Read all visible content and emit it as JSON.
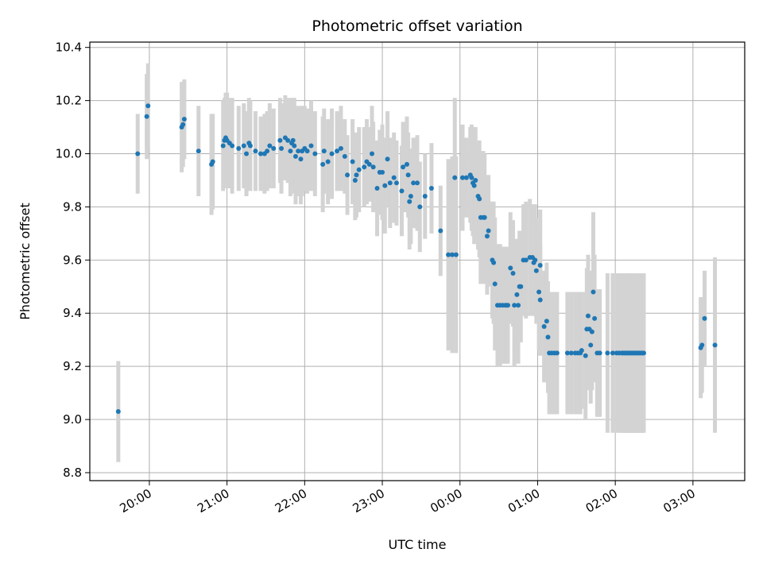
{
  "chart_data": {
    "type": "scatter",
    "title": "Photometric offset variation",
    "xlabel": "UTC time",
    "ylabel": "Photometric offset",
    "x_ticks": [
      "20:00",
      "21:00",
      "22:00",
      "23:00",
      "00:00",
      "01:00",
      "02:00",
      "03:00"
    ],
    "y_ticks": [
      "8.8",
      "9.0",
      "9.2",
      "9.4",
      "9.6",
      "9.8",
      "10.0",
      "10.2",
      "10.4"
    ],
    "xlim": [
      "19:14",
      "03:40"
    ],
    "ylim": [
      8.77,
      10.42
    ],
    "grid": true,
    "colors": {
      "points": "#1f77b4",
      "errorbars": "#d3d3d3",
      "grid": "#b0b0b0"
    },
    "series": [
      {
        "points": [
          [
            "19:36",
            9.03,
            0.19
          ],
          [
            "19:51",
            10.0,
            0.15
          ],
          [
            "19:58",
            10.14,
            0.16
          ],
          [
            "19:59",
            10.18,
            0.16
          ],
          [
            "20:25",
            10.1,
            0.17
          ],
          [
            "20:26",
            10.11,
            0.16
          ],
          [
            "20:27",
            10.13,
            0.15
          ],
          [
            "20:38",
            10.01,
            0.17
          ],
          [
            "20:48",
            9.96,
            0.19
          ],
          [
            "20:49",
            9.97,
            0.18
          ],
          [
            "20:57",
            10.03,
            0.17
          ],
          [
            "20:58",
            10.05,
            0.16
          ],
          [
            "20:59",
            10.06,
            0.17
          ],
          [
            "21:00",
            10.05,
            0.18
          ],
          [
            "21:02",
            10.04,
            0.17
          ],
          [
            "21:04",
            10.03,
            0.18
          ],
          [
            "21:09",
            10.02,
            0.16
          ],
          [
            "21:13",
            10.03,
            0.16
          ],
          [
            "21:15",
            10.0,
            0.16
          ],
          [
            "21:17",
            10.04,
            0.17
          ],
          [
            "21:18",
            10.03,
            0.17
          ],
          [
            "21:22",
            10.01,
            0.15
          ],
          [
            "21:26",
            10.0,
            0.14
          ],
          [
            "21:29",
            10.0,
            0.15
          ],
          [
            "21:31",
            10.01,
            0.15
          ],
          [
            "21:33",
            10.03,
            0.16
          ],
          [
            "21:36",
            10.02,
            0.15
          ],
          [
            "21:41",
            10.05,
            0.16
          ],
          [
            "21:42",
            10.02,
            0.17
          ],
          [
            "21:45",
            10.06,
            0.16
          ],
          [
            "21:47",
            10.05,
            0.16
          ],
          [
            "21:49",
            10.01,
            0.17
          ],
          [
            "21:50",
            10.04,
            0.17
          ],
          [
            "21:51",
            10.05,
            0.16
          ],
          [
            "21:52",
            10.03,
            0.18
          ],
          [
            "21:53",
            9.99,
            0.18
          ],
          [
            "21:55",
            10.01,
            0.17
          ],
          [
            "21:57",
            9.98,
            0.17
          ],
          [
            "21:58",
            10.01,
            0.17
          ],
          [
            "22:00",
            10.02,
            0.16
          ],
          [
            "22:02",
            10.01,
            0.16
          ],
          [
            "22:05",
            10.03,
            0.17
          ],
          [
            "22:08",
            10.0,
            0.16
          ],
          [
            "22:14",
            9.96,
            0.18
          ],
          [
            "22:15",
            10.01,
            0.16
          ],
          [
            "22:18",
            9.97,
            0.16
          ],
          [
            "22:21",
            10.0,
            0.17
          ],
          [
            "22:25",
            10.01,
            0.15
          ],
          [
            "22:28",
            10.02,
            0.16
          ],
          [
            "22:31",
            9.99,
            0.14
          ],
          [
            "22:33",
            9.92,
            0.15
          ],
          [
            "22:37",
            9.97,
            0.16
          ],
          [
            "22:39",
            9.9,
            0.15
          ],
          [
            "22:40",
            9.92,
            0.16
          ],
          [
            "22:42",
            9.94,
            0.16
          ],
          [
            "22:46",
            9.95,
            0.15
          ],
          [
            "22:48",
            9.97,
            0.16
          ],
          [
            "22:50",
            9.96,
            0.14
          ],
          [
            "22:52",
            10.0,
            0.18
          ],
          [
            "22:53",
            9.95,
            0.17
          ],
          [
            "22:56",
            9.87,
            0.18
          ],
          [
            "22:58",
            9.93,
            0.16
          ],
          [
            "23:00",
            9.93,
            0.18
          ],
          [
            "23:02",
            9.88,
            0.18
          ],
          [
            "23:04",
            9.98,
            0.18
          ],
          [
            "23:06",
            9.89,
            0.17
          ],
          [
            "23:09",
            9.91,
            0.17
          ],
          [
            "23:11",
            9.89,
            0.16
          ],
          [
            "23:15",
            9.86,
            0.17
          ],
          [
            "23:16",
            9.95,
            0.17
          ],
          [
            "23:19",
            9.96,
            0.18
          ],
          [
            "23:20",
            9.92,
            0.16
          ],
          [
            "23:21",
            9.82,
            0.18
          ],
          [
            "23:22",
            9.84,
            0.18
          ],
          [
            "23:24",
            9.89,
            0.17
          ],
          [
            "23:27",
            9.89,
            0.18
          ],
          [
            "23:29",
            9.8,
            0.17
          ],
          [
            "23:33",
            9.84,
            0.16
          ],
          [
            "23:38",
            9.87,
            0.17
          ],
          [
            "23:45",
            9.71,
            0.17
          ],
          [
            "23:51",
            9.62,
            0.36
          ],
          [
            "23:54",
            9.62,
            0.37
          ],
          [
            "23:56",
            9.91,
            0.3
          ],
          [
            "23:57",
            9.62,
            0.37
          ],
          [
            "24:02",
            9.91,
            0.2
          ],
          [
            "24:05",
            9.91,
            0.15
          ],
          [
            "24:08",
            9.92,
            0.18
          ],
          [
            "24:09",
            9.91,
            0.2
          ],
          [
            "24:10",
            9.89,
            0.2
          ],
          [
            "24:11",
            9.88,
            0.22
          ],
          [
            "24:12",
            9.9,
            0.2
          ],
          [
            "24:14",
            9.84,
            0.2
          ],
          [
            "24:15",
            9.83,
            0.22
          ],
          [
            "24:16",
            9.76,
            0.25
          ],
          [
            "24:18",
            9.76,
            0.25
          ],
          [
            "24:19",
            9.76,
            0.24
          ],
          [
            "24:21",
            9.69,
            0.22
          ],
          [
            "24:22",
            9.71,
            0.21
          ],
          [
            "24:25",
            9.6,
            0.22
          ],
          [
            "24:26",
            9.59,
            0.23
          ],
          [
            "24:27",
            9.51,
            0.25
          ],
          [
            "24:29",
            9.43,
            0.23
          ],
          [
            "24:31",
            9.43,
            0.23
          ],
          [
            "24:33",
            9.43,
            0.22
          ],
          [
            "24:35",
            9.43,
            0.22
          ],
          [
            "24:36",
            9.43,
            0.22
          ],
          [
            "24:37",
            9.43,
            0.22
          ],
          [
            "24:39",
            9.57,
            0.21
          ],
          [
            "24:41",
            9.55,
            0.2
          ],
          [
            "24:42",
            9.43,
            0.23
          ],
          [
            "24:44",
            9.47,
            0.21
          ],
          [
            "24:45",
            9.43,
            0.22
          ],
          [
            "24:46",
            9.5,
            0.21
          ],
          [
            "24:47",
            9.5,
            0.21
          ],
          [
            "24:49",
            9.6,
            0.21
          ],
          [
            "24:51",
            9.6,
            0.22
          ],
          [
            "24:54",
            9.61,
            0.22
          ],
          [
            "24:56",
            9.61,
            0.2
          ],
          [
            "24:57",
            9.59,
            0.2
          ],
          [
            "24:58",
            9.6,
            0.21
          ],
          [
            "24:59",
            9.56,
            0.2
          ],
          [
            "25:01",
            9.48,
            0.22
          ],
          [
            "25:02",
            9.45,
            0.21
          ],
          [
            "25:02",
            9.58,
            0.21
          ],
          [
            "25:05",
            9.35,
            0.21
          ],
          [
            "25:07",
            9.37,
            0.22
          ],
          [
            "25:08",
            9.31,
            0.21
          ],
          [
            "25:09",
            9.25,
            0.23
          ],
          [
            "25:11",
            9.25,
            0.23
          ],
          [
            "25:13",
            9.25,
            0.23
          ],
          [
            "25:15",
            9.25,
            0.23
          ],
          [
            "25:23",
            9.25,
            0.23
          ],
          [
            "25:26",
            9.25,
            0.23
          ],
          [
            "25:29",
            9.25,
            0.23
          ],
          [
            "25:31",
            9.25,
            0.23
          ],
          [
            "25:33",
            9.25,
            0.23
          ],
          [
            "25:34",
            9.26,
            0.22
          ],
          [
            "25:37",
            9.24,
            0.24
          ],
          [
            "25:38",
            9.34,
            0.23
          ],
          [
            "25:39",
            9.39,
            0.23
          ],
          [
            "25:40",
            9.34,
            0.22
          ],
          [
            "25:41",
            9.28,
            0.22
          ],
          [
            "25:42",
            9.33,
            0.22
          ],
          [
            "25:43",
            9.48,
            0.3
          ],
          [
            "25:44",
            9.38,
            0.24
          ],
          [
            "25:46",
            9.25,
            0.24
          ],
          [
            "25:48",
            9.25,
            0.24
          ],
          [
            "25:54",
            9.25,
            0.3
          ],
          [
            "25:58",
            9.25,
            0.3
          ],
          [
            "26:01",
            9.25,
            0.3
          ],
          [
            "26:03",
            9.25,
            0.3
          ],
          [
            "26:05",
            9.25,
            0.3
          ],
          [
            "26:06",
            9.25,
            0.3
          ],
          [
            "26:07",
            9.25,
            0.3
          ],
          [
            "26:08",
            9.25,
            0.3
          ],
          [
            "26:09",
            9.25,
            0.3
          ],
          [
            "26:10",
            9.25,
            0.3
          ],
          [
            "26:11",
            9.25,
            0.3
          ],
          [
            "26:12",
            9.25,
            0.3
          ],
          [
            "26:13",
            9.25,
            0.3
          ],
          [
            "26:14",
            9.25,
            0.3
          ],
          [
            "26:15",
            9.25,
            0.3
          ],
          [
            "26:16",
            9.25,
            0.3
          ],
          [
            "26:17",
            9.25,
            0.3
          ],
          [
            "26:18",
            9.25,
            0.3
          ],
          [
            "26:19",
            9.25,
            0.3
          ],
          [
            "26:20",
            9.25,
            0.3
          ],
          [
            "26:21",
            9.25,
            0.3
          ],
          [
            "26:22",
            9.25,
            0.3
          ],
          [
            "27:06",
            9.27,
            0.19
          ],
          [
            "27:07",
            9.28,
            0.18
          ],
          [
            "27:09",
            9.38,
            0.18
          ],
          [
            "27:17",
            9.28,
            0.33
          ]
        ]
      }
    ]
  }
}
